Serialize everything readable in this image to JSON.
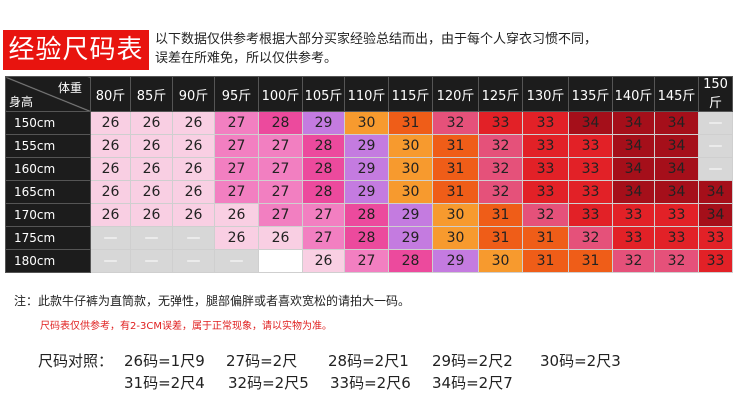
{
  "title": "经验尺码表",
  "intro": [
    "以下数据仅供参考根据大部分买家经验总结而出，由于每个人穿衣习惯不同，",
    "误差在所难免，所以仅供参考。"
  ],
  "table": {
    "corner_weight": "体重",
    "corner_height": "身高",
    "weights": [
      "80斤",
      "85斤",
      "90斤",
      "95斤",
      "100斤",
      "105斤",
      "110斤",
      "115斤",
      "120斤",
      "125斤",
      "130斤",
      "135斤",
      "140斤",
      "145斤",
      "150斤"
    ],
    "rows": [
      {
        "height": "150cm",
        "sizes": [
          "26",
          "26",
          "26",
          "27",
          "28",
          "29",
          "30",
          "31",
          "32",
          "33",
          "33",
          "34",
          "34",
          "34",
          "—"
        ]
      },
      {
        "height": "155cm",
        "sizes": [
          "26",
          "26",
          "26",
          "27",
          "27",
          "28",
          "29",
          "30",
          "31",
          "32",
          "33",
          "33",
          "34",
          "34",
          "—"
        ]
      },
      {
        "height": "160cm",
        "sizes": [
          "26",
          "26",
          "26",
          "27",
          "27",
          "28",
          "29",
          "30",
          "31",
          "32",
          "33",
          "33",
          "34",
          "34",
          "—"
        ]
      },
      {
        "height": "165cm",
        "sizes": [
          "26",
          "26",
          "26",
          "27",
          "27",
          "28",
          "29",
          "30",
          "31",
          "32",
          "33",
          "33",
          "34",
          "34",
          "34"
        ]
      },
      {
        "height": "170cm",
        "sizes": [
          "26",
          "26",
          "26",
          "26",
          "27",
          "27",
          "28",
          "29",
          "30",
          "31",
          "32",
          "33",
          "33",
          "33",
          "34"
        ]
      },
      {
        "height": "175cm",
        "sizes": [
          "—",
          "—",
          "—",
          "26",
          "26",
          "27",
          "28",
          "29",
          "30",
          "31",
          "31",
          "32",
          "33",
          "33",
          "33"
        ]
      },
      {
        "height": "180cm",
        "sizes": [
          "—",
          "—",
          "—",
          "—",
          "",
          "26",
          "27",
          "28",
          "29",
          "30",
          "31",
          "31",
          "32",
          "32",
          "33"
        ]
      }
    ]
  },
  "notes": {
    "line1": "注：此款牛仔裤为直筒款，无弹性，腿部偏胖或者喜欢宽松的请拍大一码。",
    "line2": "尺码表仅供参考，有2-3CM误差，属于正常现象，请以实物为准。"
  },
  "conversion": {
    "label": "尺码对照：",
    "row1": [
      "26码=1尺9",
      "27码=2尺",
      "28码=2尺1",
      "29码=2尺2",
      "30码=2尺3"
    ],
    "row2": [
      "31码=2尺4",
      "32码=2尺5",
      "33码=2尺6",
      "34码=2尺7"
    ]
  },
  "colors": {
    "title_bg": "#e8140f",
    "header_bg": "#1c1c1c",
    "note_red": "#e02020",
    "size_26": "#f9cfe3",
    "size_27": "#f27fc1",
    "size_28": "#ec4a9d",
    "size_29": "#c47be0",
    "size_30": "#f79a2e",
    "size_31": "#ef5d18",
    "size_32": "#e5517a",
    "size_33": "#e22127",
    "size_34": "#a50f1a",
    "unavailable": "#d7d7d7"
  }
}
